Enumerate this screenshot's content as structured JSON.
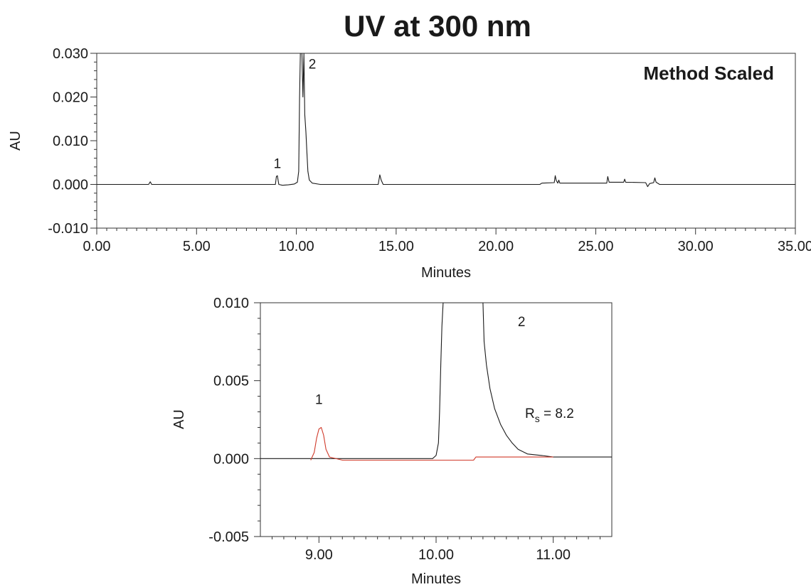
{
  "title": "UV at 300 nm",
  "chart_data": [
    {
      "type": "line",
      "xlabel": "Minutes",
      "ylabel": "AU",
      "xlim": [
        0,
        35
      ],
      "ylim": [
        -0.01,
        0.03
      ],
      "x_ticks": [
        "0.00",
        "5.00",
        "10.00",
        "15.00",
        "20.00",
        "25.00",
        "30.00",
        "35.00"
      ],
      "x_tick_values": [
        0,
        5,
        10,
        15,
        20,
        25,
        30,
        35
      ],
      "y_ticks": [
        "0.030",
        "0.020",
        "0.010",
        "0.000",
        "-0.010"
      ],
      "y_tick_values": [
        0.03,
        0.02,
        0.01,
        0.0,
        -0.01
      ],
      "grid": false,
      "annotation": "Method Scaled",
      "peak_labels": [
        {
          "text": "1",
          "x": 9.05,
          "y": 0.0037
        },
        {
          "text": "2",
          "x": 10.8,
          "y": 0.0265
        }
      ],
      "series": [
        {
          "color": "#1a1a1a",
          "points": [
            [
              0.0,
              0.0
            ],
            [
              2.6,
              0.0
            ],
            [
              2.68,
              0.0006
            ],
            [
              2.75,
              0.0
            ],
            [
              8.95,
              0.0
            ],
            [
              9.0,
              0.0018
            ],
            [
              9.05,
              0.002
            ],
            [
              9.12,
              0.0
            ],
            [
              9.3,
              -0.0002
            ],
            [
              9.6,
              -0.0001
            ],
            [
              9.9,
              0.0001
            ],
            [
              10.05,
              0.0005
            ],
            [
              10.12,
              0.003
            ],
            [
              10.16,
              0.02
            ],
            [
              10.2,
              0.03
            ],
            [
              10.28,
              0.03
            ],
            [
              10.33,
              0.02
            ],
            [
              10.38,
              0.03
            ],
            [
              10.42,
              0.016
            ],
            [
              10.48,
              0.012
            ],
            [
              10.52,
              0.008
            ],
            [
              10.58,
              0.003
            ],
            [
              10.65,
              0.001
            ],
            [
              10.8,
              0.0003
            ],
            [
              11.2,
              0.0
            ],
            [
              14.1,
              0.0
            ],
            [
              14.18,
              0.0022
            ],
            [
              14.25,
              0.001
            ],
            [
              14.35,
              0.0
            ],
            [
              22.2,
              0.0
            ],
            [
              22.3,
              0.0003
            ],
            [
              22.92,
              0.0004
            ],
            [
              22.97,
              0.002
            ],
            [
              23.02,
              0.0009
            ],
            [
              23.1,
              0.0003
            ],
            [
              23.15,
              0.001
            ],
            [
              23.2,
              0.0003
            ],
            [
              25.55,
              0.0003
            ],
            [
              25.6,
              0.0018
            ],
            [
              25.67,
              0.0005
            ],
            [
              26.4,
              0.0005
            ],
            [
              26.45,
              0.0012
            ],
            [
              26.5,
              0.0005
            ],
            [
              27.5,
              0.0004
            ],
            [
              27.6,
              -0.0005
            ],
            [
              27.7,
              0.0002
            ],
            [
              27.9,
              0.0004
            ],
            [
              27.96,
              0.0015
            ],
            [
              28.02,
              0.0005
            ],
            [
              28.2,
              0.0
            ],
            [
              35.0,
              0.0
            ]
          ]
        }
      ]
    },
    {
      "type": "line",
      "xlabel": "Minutes",
      "ylabel": "AU",
      "xlim": [
        8.5,
        11.5
      ],
      "ylim": [
        -0.005,
        0.01
      ],
      "x_ticks": [
        "9.00",
        "10.00",
        "11.00"
      ],
      "x_tick_values": [
        9,
        10,
        11
      ],
      "y_ticks": [
        "0.010",
        "0.005",
        "0.000",
        "-0.005"
      ],
      "y_tick_values": [
        0.01,
        0.005,
        0.0,
        -0.005
      ],
      "grid": false,
      "annotation": {
        "main": "R",
        "sub": "s",
        "rest": " = 8.2"
      },
      "peak_labels": [
        {
          "text": "1",
          "x": 9.0,
          "y": 0.0035
        },
        {
          "text": "2",
          "x": 10.73,
          "y": 0.0085
        }
      ],
      "series": [
        {
          "color": "#1a1a1a",
          "points": [
            [
              8.5,
              0.0
            ],
            [
              9.97,
              0.0
            ],
            [
              10.0,
              0.0002
            ],
            [
              10.02,
              0.001
            ],
            [
              10.03,
              0.003
            ],
            [
              10.04,
              0.006
            ],
            [
              10.05,
              0.0085
            ],
            [
              10.06,
              0.01
            ],
            [
              10.4,
              0.01
            ],
            [
              10.41,
              0.0075
            ],
            [
              10.43,
              0.006
            ],
            [
              10.46,
              0.0045
            ],
            [
              10.5,
              0.0032
            ],
            [
              10.55,
              0.0022
            ],
            [
              10.6,
              0.0015
            ],
            [
              10.65,
              0.001
            ],
            [
              10.7,
              0.0006
            ],
            [
              10.78,
              0.0003
            ],
            [
              10.9,
              0.0002
            ],
            [
              11.0,
              0.0001
            ],
            [
              11.5,
              0.0001
            ]
          ]
        },
        {
          "color": "#d03a2a",
          "points": [
            [
              8.93,
              -0.0001
            ],
            [
              8.96,
              0.0004
            ],
            [
              8.98,
              0.0013
            ],
            [
              9.0,
              0.0019
            ],
            [
              9.02,
              0.002
            ],
            [
              9.04,
              0.0015
            ],
            [
              9.06,
              0.0006
            ],
            [
              9.09,
              0.0001
            ],
            [
              9.2,
              -0.0001
            ],
            [
              9.97,
              -0.0001
            ],
            [
              10.32,
              -0.0001
            ],
            [
              10.34,
              0.0001
            ],
            [
              11.0,
              0.0001
            ]
          ]
        }
      ]
    }
  ]
}
